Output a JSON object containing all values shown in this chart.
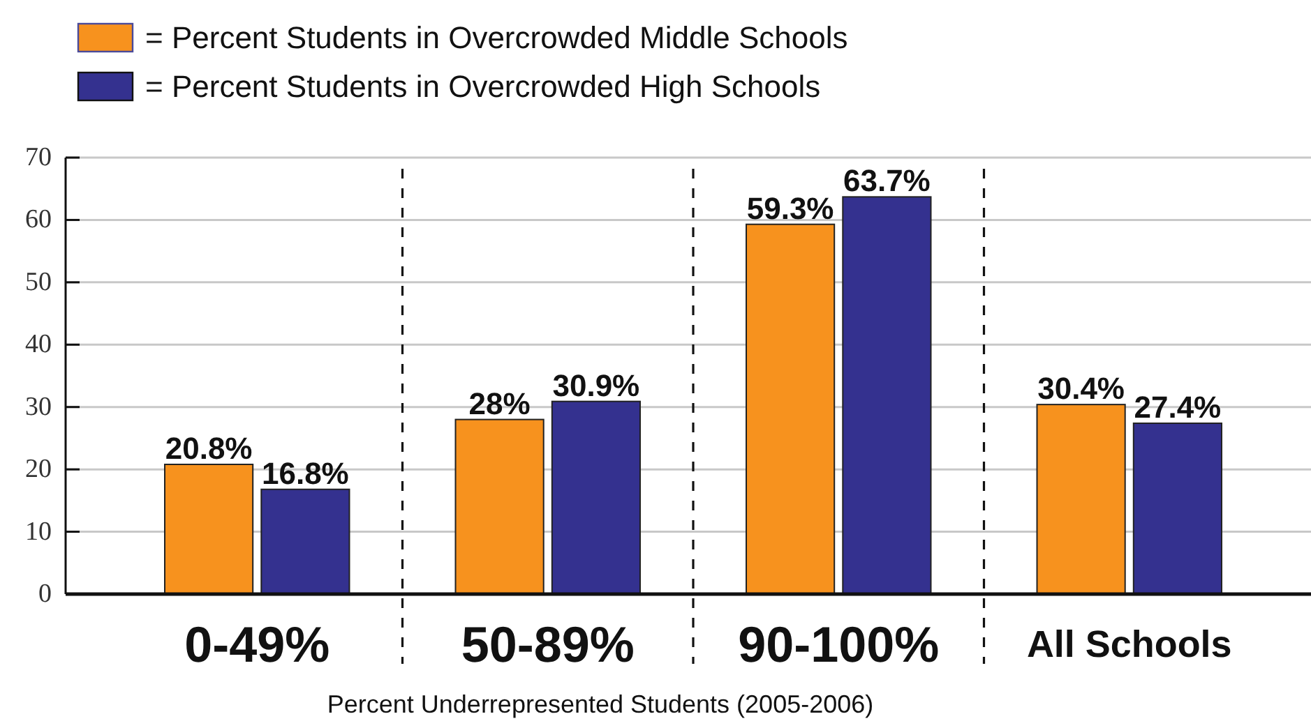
{
  "chart_data": {
    "type": "bar",
    "categories": [
      "0-49%",
      "50-89%",
      "90-100%",
      "All Schools"
    ],
    "xlabel": "Percent Underrepresented Students (2005-2006)",
    "series": [
      {
        "name": "= Percent Students in Overcrowded Middle Schools",
        "color": "#f7921e",
        "values": [
          20.8,
          28,
          59.3,
          30.4
        ],
        "value_labels": [
          "20.8%",
          "28%",
          "59.3%",
          "30.4%"
        ]
      },
      {
        "name": "= Percent Students in Overcrowded High Schools",
        "color": "#34318f",
        "values": [
          16.8,
          30.9,
          63.7,
          27.4
        ],
        "value_labels": [
          "16.8%",
          "30.9%",
          "63.7%",
          "27.4%"
        ]
      }
    ],
    "ylim": [
      0,
      70
    ],
    "yticks": [
      0,
      10,
      20,
      30,
      40,
      50,
      60,
      70
    ],
    "grid": true,
    "legend": "top left"
  }
}
